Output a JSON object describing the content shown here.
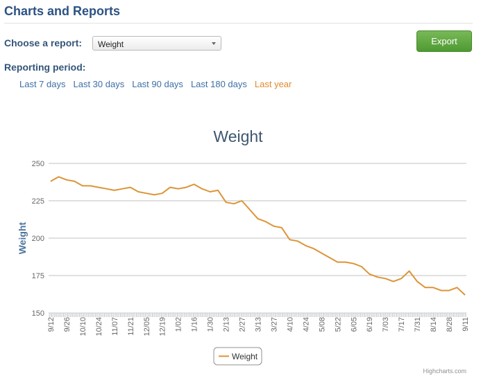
{
  "header": {
    "title": "Charts and Reports"
  },
  "report_picker": {
    "label": "Choose a report:",
    "selected": "Weight"
  },
  "export_button": "Export",
  "period": {
    "label": "Reporting period:",
    "options": [
      {
        "label": "Last 7 days",
        "color": "#3d6fa6"
      },
      {
        "label": "Last 30 days",
        "color": "#3d6fa6"
      },
      {
        "label": "Last 90 days",
        "color": "#3d6fa6"
      },
      {
        "label": "Last 180 days",
        "color": "#3d6fa6"
      },
      {
        "label": "Last year",
        "color": "#e08a2d"
      }
    ]
  },
  "chart_data": {
    "type": "line",
    "title": "Weight",
    "y_label": "Weight",
    "credit": "Highcharts.com",
    "categories": [
      "9/12",
      null,
      "9/26",
      null,
      "10/10",
      null,
      "10/24",
      null,
      "11/07",
      null,
      "11/21",
      null,
      "12/05",
      null,
      "12/19",
      null,
      "1/02",
      null,
      "1/16",
      null,
      "1/30",
      null,
      "2/13",
      null,
      "2/27",
      null,
      "3/13",
      null,
      "3/27",
      null,
      "4/10",
      null,
      "4/24",
      null,
      "5/08",
      null,
      "5/22",
      null,
      "6/05",
      null,
      "6/19",
      null,
      "7/03",
      null,
      "7/17",
      null,
      "7/31",
      null,
      "8/14",
      null,
      "8/28",
      null,
      "9/11"
    ],
    "series": [
      {
        "name": "Weight",
        "color": "#dc9436",
        "values": [
          238,
          241,
          239,
          238,
          235,
          235,
          234,
          233,
          232,
          233,
          234,
          231,
          230,
          229,
          230,
          234,
          233,
          234,
          236,
          233,
          231,
          232,
          224,
          223,
          225,
          219,
          213,
          211,
          208,
          207,
          199,
          198,
          195,
          193,
          190,
          187,
          184,
          184,
          183,
          181,
          176,
          174,
          173,
          171,
          173,
          178,
          171,
          167,
          167,
          165,
          165,
          167,
          162
        ]
      }
    ],
    "ylim": [
      150,
      250
    ],
    "yticks": [
      150,
      175,
      200,
      225,
      250
    ],
    "grid": true,
    "legend": "bottom"
  }
}
